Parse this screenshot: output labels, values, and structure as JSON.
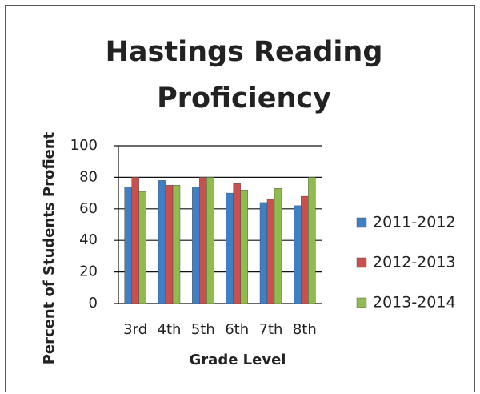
{
  "chart_data": {
    "type": "bar",
    "title": "Hastings Reading Proficiency",
    "x_label": "Grade Level",
    "y_label": "Percent of Students Profient",
    "categories": [
      "3rd",
      "4th",
      "5th",
      "6th",
      "7th",
      "8th"
    ],
    "series": [
      {
        "name": "2011-2012",
        "color": "#3f7fc4",
        "values": [
          74,
          78,
          74,
          70,
          64,
          62
        ]
      },
      {
        "name": "2012-2013",
        "color": "#c9504d",
        "values": [
          80,
          75,
          80,
          76,
          66,
          68
        ]
      },
      {
        "name": "2013-2014",
        "color": "#8fbb4f",
        "values": [
          71,
          75,
          80,
          72,
          73,
          80
        ]
      }
    ],
    "ylim": [
      0,
      100
    ],
    "yticks": [
      0,
      20,
      40,
      60,
      80,
      100
    ],
    "grid": true,
    "legend": "right"
  }
}
